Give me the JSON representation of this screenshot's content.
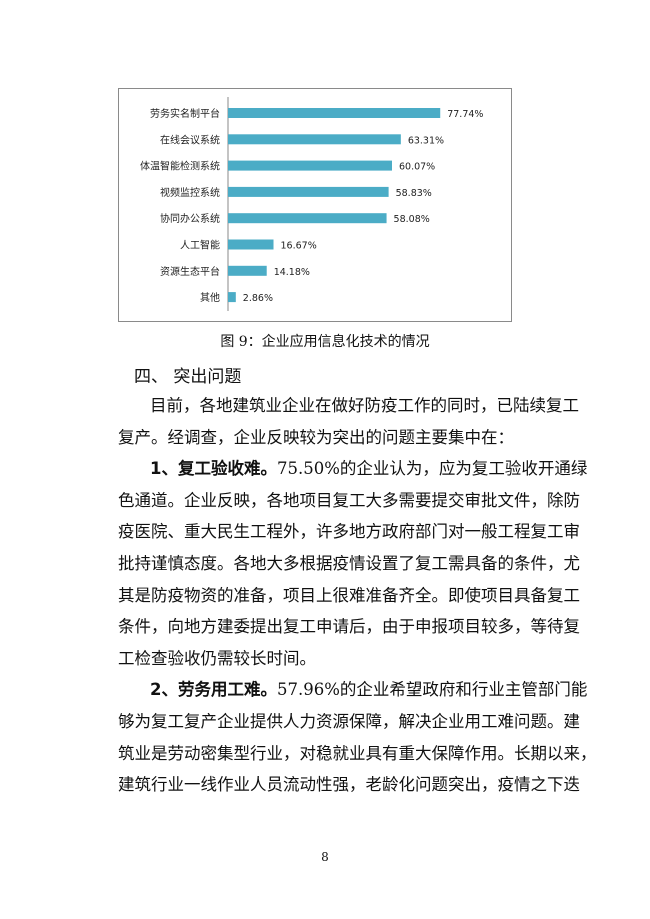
{
  "chart_data": {
    "type": "bar",
    "orientation": "horizontal",
    "categories": [
      "劳务实名制平台",
      "在线会议系统",
      "体温智能检测系统",
      "视频监控系统",
      "协同办公系统",
      "人工智能",
      "资源生态平台",
      "其他"
    ],
    "values": [
      77.74,
      63.31,
      60.07,
      58.83,
      58.08,
      16.67,
      14.18,
      2.86
    ],
    "data_labels": [
      "77.74%",
      "63.31%",
      "60.07%",
      "58.83%",
      "58.08%",
      "16.67%",
      "14.18%",
      "2.86%"
    ],
    "bar_color": "#4BACC6",
    "grid": false,
    "legend": "none"
  },
  "caption": "图 9：企业应用信息化技术的情况",
  "heading": "四、 突出问题",
  "lines": [
    {
      "bold": "",
      "text": "目前，各地建筑业企业在做好防疫工作的同时，已陆续复工",
      "indent": true
    },
    {
      "bold": "",
      "text": "复产。经调查，企业反映较为突出的问题主要集中在：",
      "short": true
    },
    {
      "bold": "1、复工验收难。",
      "text": "75.50%的企业认为，应为复工验收开通绿",
      "indent": true
    },
    {
      "bold": "",
      "text": "色通道。企业反映，各地项目复工大多需要提交审批文件，除防"
    },
    {
      "bold": "",
      "text": "疫医院、重大民生工程外，许多地方政府部门对一般工程复工审"
    },
    {
      "bold": "",
      "text": "批持谨慎态度。各地大多根据疫情设置了复工需具备的条件，尤"
    },
    {
      "bold": "",
      "text": "其是防疫物资的准备，项目上很难准备齐全。即使项目具备复工"
    },
    {
      "bold": "",
      "text": "条件，向地方建委提出复工申请后，由于申报项目较多，等待复"
    },
    {
      "bold": "",
      "text": "工检查验收仍需较长时间。",
      "short": true
    },
    {
      "bold": "2、劳务用工难。",
      "text": "57.96%的企业希望政府和行业主管部门能",
      "indent": true
    },
    {
      "bold": "",
      "text": "够为复工复产企业提供人力资源保障，解决企业用工难问题。建"
    },
    {
      "bold": "",
      "text": "筑业是劳动密集型行业，对稳就业具有重大保障作用。长期以来，"
    },
    {
      "bold": "",
      "text": "建筑行业一线作业人员流动性强，老龄化问题突出，疫情之下迭"
    }
  ],
  "page_number": "8"
}
